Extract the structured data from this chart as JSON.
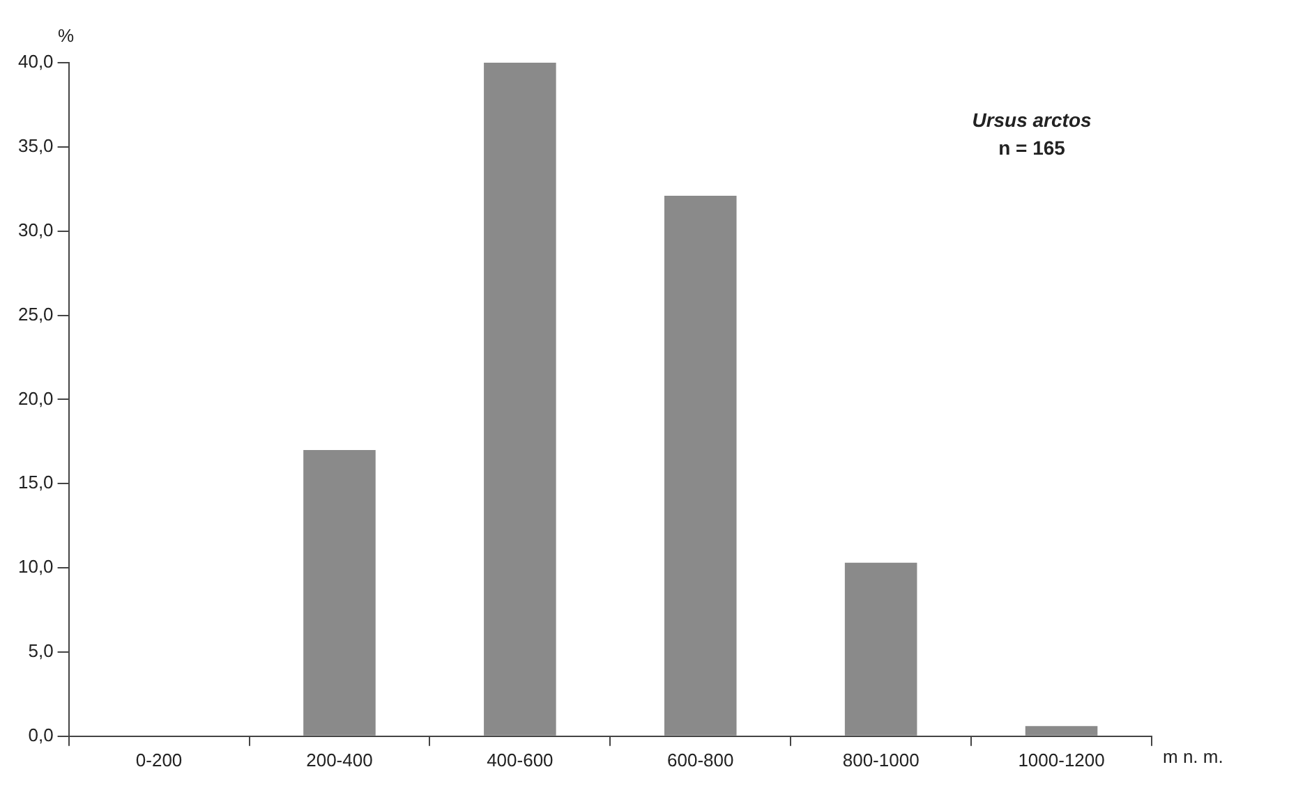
{
  "chart_data": {
    "type": "bar",
    "xlabel": "m n. m.",
    "ylabel": "%",
    "categories": [
      "0-200",
      "200-400",
      "400-600",
      "600-800",
      "800-1000",
      "1000-1200"
    ],
    "values": [
      0,
      17.0,
      40.0,
      32.1,
      10.3,
      0.6
    ],
    "color": "#8a8a8a",
    "ylim": [
      0,
      40
    ],
    "yticks": [
      {
        "value": 0,
        "label": "0,0"
      },
      {
        "value": 5,
        "label": "5,0"
      },
      {
        "value": 10,
        "label": "10,0"
      },
      {
        "value": 15,
        "label": "15,0"
      },
      {
        "value": 20,
        "label": "20,0"
      },
      {
        "value": 25,
        "label": "25,0"
      },
      {
        "value": 30,
        "label": "30,0"
      },
      {
        "value": 35,
        "label": "35,0"
      },
      {
        "value": 40,
        "label": "40,0"
      }
    ],
    "grid": false,
    "legend": false,
    "annotations": [
      "Ursus arctos",
      "n = 165"
    ]
  }
}
